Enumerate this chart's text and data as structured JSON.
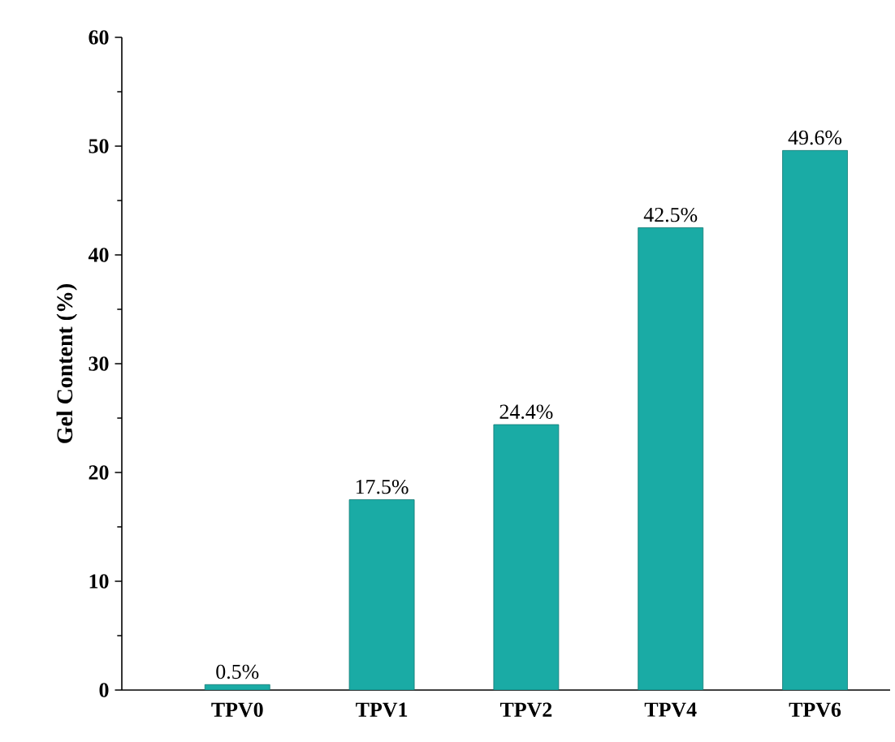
{
  "chart_data": {
    "type": "bar",
    "ylabel": "Gel Content (%)",
    "categories": [
      "TPV0",
      "TPV1",
      "TPV2",
      "TPV4",
      "TPV6"
    ],
    "values": [
      0.5,
      17.5,
      24.4,
      42.5,
      49.6
    ],
    "color": "#1aaba5",
    "value_labels": [
      "0.5%",
      "17.5%",
      "24.4%",
      "42.5%",
      "49.6%"
    ],
    "ylim": [
      0,
      60
    ],
    "yticks": [
      0,
      10,
      20,
      30,
      40,
      50,
      60
    ]
  }
}
